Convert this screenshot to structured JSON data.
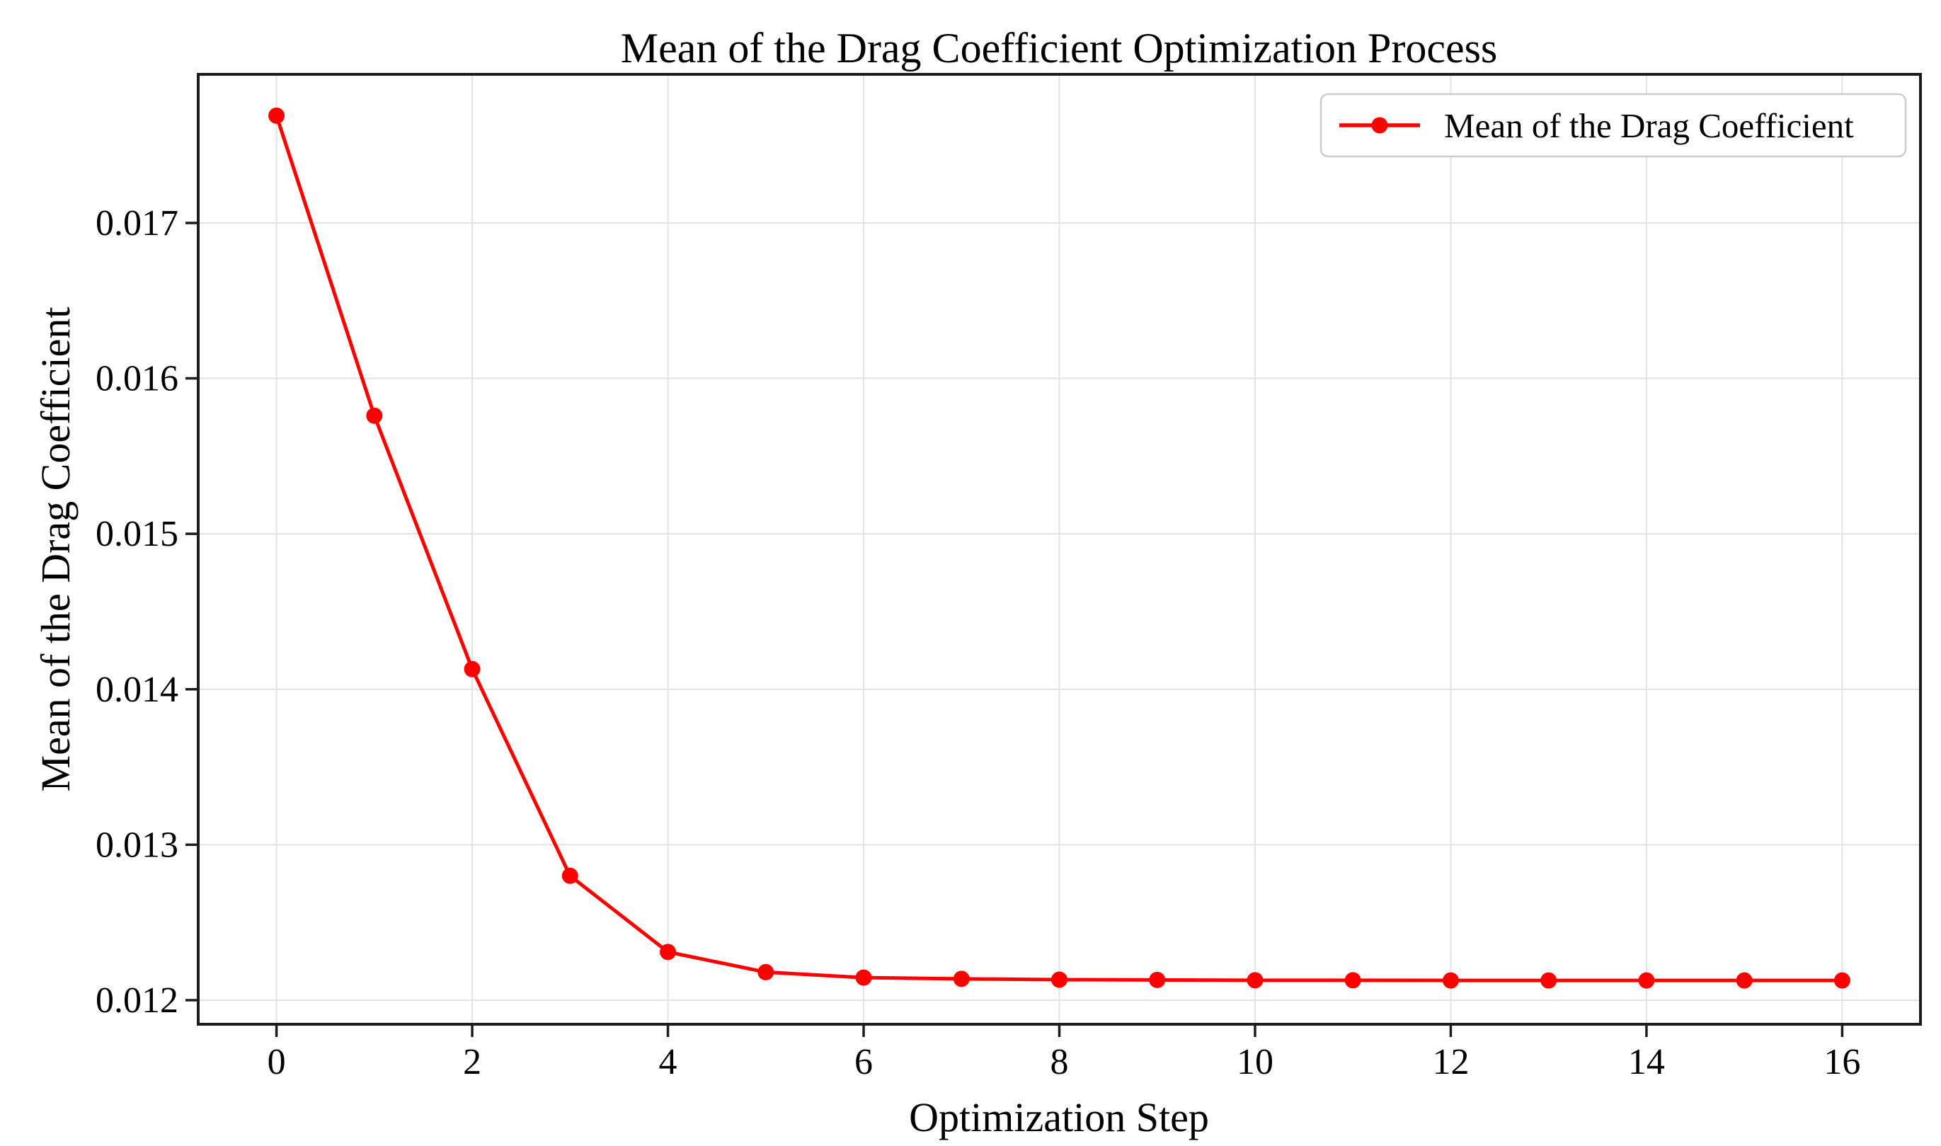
{
  "chart_data": {
    "type": "line",
    "title": "Mean of the Drag Coefficient Optimization Process",
    "xlabel": "Optimization Step",
    "ylabel": "Mean of the Drag Coefficient",
    "series": [
      {
        "name": "Mean of the Drag Coefficient",
        "color": "#ff0000",
        "marker": "circle",
        "x": [
          0,
          1,
          2,
          3,
          4,
          5,
          6,
          7,
          8,
          9,
          10,
          11,
          12,
          13,
          14,
          15,
          16
        ],
        "y": [
          0.01769,
          0.01576,
          0.01413,
          0.0128,
          0.01231,
          0.01218,
          0.012145,
          0.012137,
          0.012132,
          0.01213,
          0.012128,
          0.012128,
          0.012127,
          0.012127,
          0.012127,
          0.012127,
          0.012127
        ]
      }
    ],
    "xticks": [
      0,
      2,
      4,
      6,
      8,
      10,
      12,
      14,
      16
    ],
    "yticks": [
      0.012,
      0.013,
      0.014,
      0.015,
      0.016,
      0.017
    ],
    "ytick_decimals": 3,
    "xlim": [
      -0.8,
      16.8
    ],
    "ylim": [
      0.011845,
      0.017956
    ],
    "grid": true,
    "legend": {
      "position": "upper right",
      "entries": [
        "Mean of the Drag Coefficient"
      ]
    },
    "colors": {
      "line": "#ff0000",
      "grid": "#e3e3e3",
      "spine": "#1c1c1c",
      "text": "#000000",
      "legend_border": "#cccccc",
      "background": "#ffffff"
    }
  }
}
